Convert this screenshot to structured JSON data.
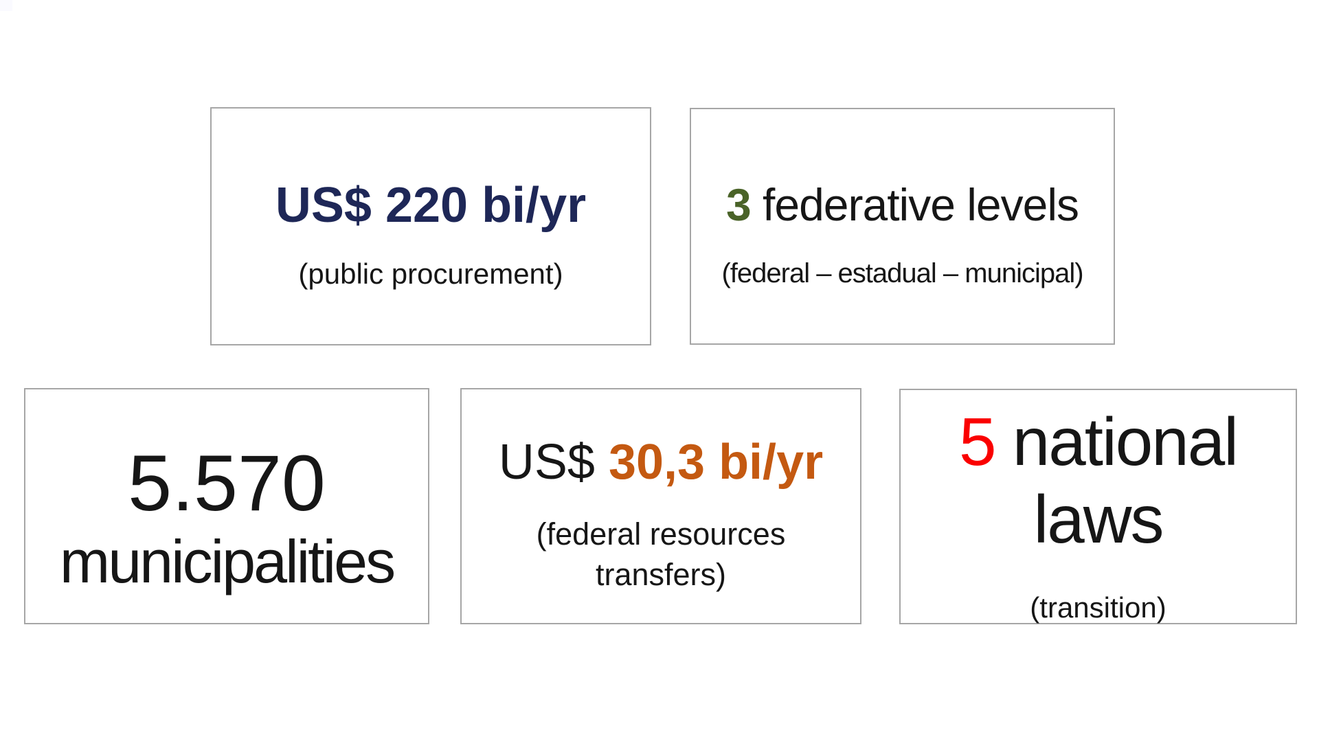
{
  "slide": {
    "background": "#ffffff",
    "card_border_color": "#a6a6a6",
    "colors": {
      "navy": "#1e2757",
      "green": "#4a6328",
      "orange": "#c45911",
      "red": "#fa0000",
      "text": "#161616"
    },
    "cards": [
      {
        "id": "public-procurement",
        "value": "US$ 220 bi/yr",
        "caption": "(public procurement)"
      },
      {
        "id": "federative-levels",
        "number": "3",
        "label": " federative levels",
        "caption": "(federal – estadual – municipal)"
      },
      {
        "id": "municipalities",
        "value": "5.570",
        "label": "municipalities"
      },
      {
        "id": "federal-resources-transfers",
        "prefix": "US$ ",
        "value": "30,3 bi/yr",
        "caption_line1": "(federal resources",
        "caption_line2": "transfers)"
      },
      {
        "id": "national-laws",
        "number": "5",
        "label_line1": " national",
        "label_line2": "laws",
        "caption": "(transition)"
      }
    ]
  }
}
